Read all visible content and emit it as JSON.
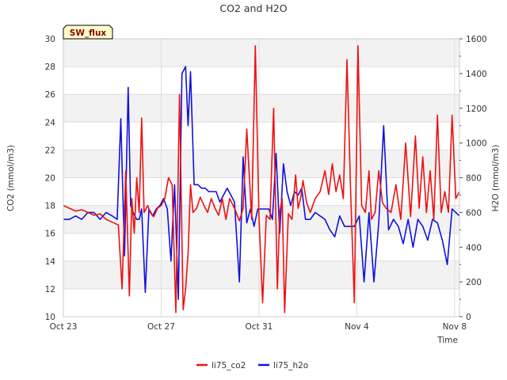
{
  "chart_data": {
    "type": "line",
    "title": "CO2 and H2O",
    "badge": "SW_flux",
    "xlabel": "Time",
    "ylabel": "CO2 (mmol/m3)",
    "y2label": "H2O (mmol/m3)",
    "xlim": [
      0,
      16.2
    ],
    "ylim": [
      10,
      30
    ],
    "y2lim": [
      0,
      1600
    ],
    "x_ticks": [
      {
        "x": 0,
        "label": "Oct 23"
      },
      {
        "x": 4,
        "label": "Oct 27"
      },
      {
        "x": 8,
        "label": "Oct 31"
      },
      {
        "x": 12,
        "label": "Nov 4"
      },
      {
        "x": 16,
        "label": "Nov 8"
      }
    ],
    "y_ticks": [
      10,
      12,
      14,
      16,
      18,
      20,
      22,
      24,
      26,
      28,
      30
    ],
    "y2_ticks": [
      0,
      200,
      400,
      600,
      800,
      1000,
      1200,
      1400,
      1600
    ],
    "legend_position": "bottom-center",
    "colors": {
      "li75_co2": "#ee1111",
      "li75_h2o": "#1111dd",
      "band": "#f2f2f2",
      "grid": "#dddddd",
      "badge_bg": "#ffffcc"
    },
    "series": [
      {
        "name": "li75_co2",
        "axis": "left",
        "color": "#ee1111",
        "x": [
          0.0,
          0.25,
          0.5,
          0.75,
          1.0,
          1.25,
          1.5,
          1.75,
          2.0,
          2.25,
          2.4,
          2.55,
          2.7,
          2.8,
          2.9,
          3.0,
          3.1,
          3.2,
          3.3,
          3.45,
          3.55,
          3.7,
          3.85,
          4.0,
          4.15,
          4.3,
          4.45,
          4.6,
          4.75,
          4.9,
          5.0,
          5.1,
          5.2,
          5.3,
          5.45,
          5.6,
          5.75,
          5.9,
          6.05,
          6.2,
          6.35,
          6.5,
          6.65,
          6.8,
          7.0,
          7.2,
          7.35,
          7.5,
          7.7,
          7.85,
          8.0,
          8.15,
          8.3,
          8.45,
          8.6,
          8.75,
          8.85,
          8.95,
          9.05,
          9.2,
          9.35,
          9.5,
          9.6,
          9.7,
          9.8,
          9.95,
          10.1,
          10.3,
          10.5,
          10.7,
          10.85,
          11.0,
          11.15,
          11.3,
          11.45,
          11.6,
          11.75,
          11.9,
          12.05,
          12.2,
          12.35,
          12.5,
          12.6,
          12.75,
          12.9,
          13.05,
          13.2,
          13.4,
          13.6,
          13.8,
          14.0,
          14.2,
          14.4,
          14.55,
          14.7,
          14.85,
          15.0,
          15.15,
          15.3,
          15.45,
          15.6,
          15.75,
          15.9,
          16.05,
          16.2
        ],
        "values": [
          18.0,
          17.8,
          17.6,
          17.7,
          17.5,
          17.3,
          17.4,
          17.0,
          16.8,
          16.6,
          12.0,
          20.5,
          11.5,
          18.5,
          16.0,
          20.0,
          17.5,
          24.3,
          17.5,
          18.0,
          17.5,
          17.2,
          17.8,
          18.0,
          18.5,
          20.0,
          19.5,
          10.3,
          26.0,
          10.5,
          12.0,
          14.5,
          19.5,
          17.5,
          17.8,
          18.6,
          18.0,
          17.5,
          18.5,
          17.8,
          17.3,
          18.5,
          17.0,
          18.5,
          17.8,
          16.9,
          17.8,
          23.5,
          17.0,
          29.5,
          17.2,
          11.0,
          17.3,
          17.0,
          25.0,
          12.0,
          17.5,
          18.5,
          10.3,
          17.4,
          17.0,
          20.2,
          17.8,
          18.5,
          19.8,
          18.2,
          17.5,
          18.5,
          19.0,
          20.5,
          18.8,
          21.0,
          19.0,
          20.2,
          18.5,
          28.5,
          18.8,
          11.0,
          29.5,
          18.0,
          17.5,
          20.5,
          17.0,
          17.5,
          20.5,
          18.2,
          17.8,
          17.5,
          19.5,
          17.0,
          22.5,
          17.2,
          23.0,
          17.8,
          21.5,
          17.5,
          20.5,
          17.0,
          24.5,
          17.5,
          19.0,
          17.5,
          24.5,
          18.5,
          19.0
        ]
      },
      {
        "name": "li75_h2o",
        "axis": "right",
        "color": "#1111dd",
        "x": [
          0.0,
          0.25,
          0.5,
          0.75,
          1.0,
          1.25,
          1.5,
          1.75,
          2.0,
          2.2,
          2.35,
          2.5,
          2.65,
          2.75,
          2.85,
          3.0,
          3.1,
          3.2,
          3.35,
          3.5,
          3.65,
          3.8,
          3.95,
          4.1,
          4.25,
          4.4,
          4.55,
          4.7,
          4.85,
          5.0,
          5.1,
          5.2,
          5.35,
          5.5,
          5.65,
          5.8,
          5.95,
          6.1,
          6.25,
          6.4,
          6.55,
          6.7,
          6.85,
          7.0,
          7.2,
          7.35,
          7.5,
          7.65,
          7.8,
          7.95,
          8.1,
          8.25,
          8.4,
          8.55,
          8.7,
          8.85,
          9.0,
          9.15,
          9.3,
          9.45,
          9.6,
          9.75,
          9.9,
          10.1,
          10.3,
          10.5,
          10.7,
          10.9,
          11.1,
          11.3,
          11.5,
          11.7,
          11.9,
          12.1,
          12.3,
          12.5,
          12.7,
          12.9,
          13.1,
          13.3,
          13.5,
          13.7,
          13.9,
          14.1,
          14.3,
          14.5,
          14.7,
          14.9,
          15.1,
          15.3,
          15.5,
          15.7,
          15.9,
          16.05,
          16.2
        ],
        "values": [
          560,
          560,
          580,
          560,
          600,
          600,
          560,
          600,
          580,
          560,
          1140,
          350,
          1320,
          640,
          600,
          560,
          560,
          620,
          140,
          620,
          580,
          620,
          640,
          680,
          620,
          320,
          760,
          100,
          1400,
          1440,
          1100,
          1410,
          760,
          760,
          740,
          740,
          720,
          720,
          720,
          660,
          700,
          740,
          700,
          660,
          200,
          920,
          540,
          620,
          520,
          620,
          620,
          620,
          620,
          560,
          940,
          480,
          880,
          720,
          640,
          720,
          700,
          740,
          560,
          560,
          600,
          580,
          560,
          500,
          460,
          580,
          520,
          520,
          520,
          580,
          200,
          600,
          200,
          540,
          1100,
          500,
          560,
          520,
          420,
          560,
          400,
          560,
          520,
          440,
          560,
          540,
          440,
          300,
          620,
          600,
          580
        ]
      }
    ]
  }
}
